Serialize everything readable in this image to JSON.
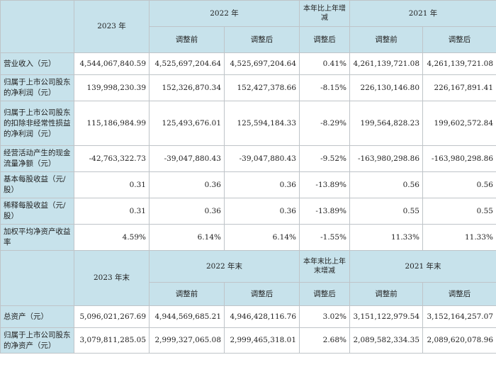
{
  "section1": {
    "col_2023": "2023 年",
    "col_2022": "2022 年",
    "col_change": "本年比上年增减",
    "col_2021": "2021 年",
    "before_adj": "调整前",
    "after_adj": "调整后",
    "adj_change": "调整后",
    "rows": [
      {
        "label": "营业收入（元）",
        "v2023": "4,544,067,840.59",
        "v2022_before": "4,525,697,204.64",
        "v2022_after": "4,525,697,204.64",
        "change": "0.41%",
        "v2021_before": "4,261,139,721.08",
        "v2021_after": "4,261,139,721.08"
      },
      {
        "label": "归属于上市公司股东的净利润（元）",
        "v2023": "139,998,230.39",
        "v2022_before": "152,326,870.34",
        "v2022_after": "152,427,378.66",
        "change": "-8.15%",
        "v2021_before": "226,130,146.80",
        "v2021_after": "226,167,891.41"
      },
      {
        "label": "归属于上市公司股东的扣除非经常性损益的净利润（元）",
        "v2023": "115,186,984.99",
        "v2022_before": "125,493,676.01",
        "v2022_after": "125,594,184.33",
        "change": "-8.29%",
        "v2021_before": "199,564,828.23",
        "v2021_after": "199,602,572.84"
      },
      {
        "label": "经营活动产生的现金流量净额（元）",
        "v2023": "-42,763,322.73",
        "v2022_before": "-39,047,880.43",
        "v2022_after": "-39,047,880.43",
        "change": "-9.52%",
        "v2021_before": "-163,980,298.86",
        "v2021_after": "-163,980,298.86"
      },
      {
        "label": "基本每股收益（元/股）",
        "v2023": "0.31",
        "v2022_before": "0.36",
        "v2022_after": "0.36",
        "change": "-13.89%",
        "v2021_before": "0.56",
        "v2021_after": "0.56"
      },
      {
        "label": "稀释每股收益（元/股）",
        "v2023": "0.31",
        "v2022_before": "0.36",
        "v2022_after": "0.36",
        "change": "-13.89%",
        "v2021_before": "0.55",
        "v2021_after": "0.55"
      },
      {
        "label": "加权平均净资产收益率",
        "v2023": "4.59%",
        "v2022_before": "6.14%",
        "v2022_after": "6.14%",
        "change": "-1.55%",
        "v2021_before": "11.33%",
        "v2021_after": "11.33%"
      }
    ]
  },
  "section2": {
    "col_2023": "2023 年末",
    "col_2022": "2022 年末",
    "col_change": "本年末比上年末增减",
    "col_2021": "2021 年末",
    "before_adj": "调整前",
    "after_adj": "调整后",
    "adj_change": "调整后",
    "rows": [
      {
        "label": "总资产（元）",
        "v2023": "5,096,021,267.69",
        "v2022_before": "4,944,569,685.21",
        "v2022_after": "4,946,428,116.76",
        "change": "3.02%",
        "v2021_before": "3,151,122,979.54",
        "v2021_after": "3,152,164,257.07"
      },
      {
        "label": "归属于上市公司股东的净资产（元）",
        "v2023": "3,079,811,285.05",
        "v2022_before": "2,999,327,065.08",
        "v2022_after": "2,999,465,318.01",
        "change": "2.68%",
        "v2021_before": "2,089,582,334.35",
        "v2021_after": "2,089,620,078.96"
      }
    ]
  }
}
